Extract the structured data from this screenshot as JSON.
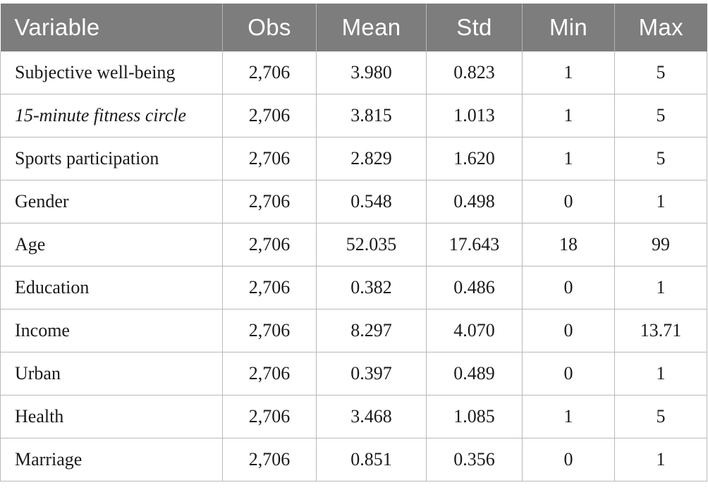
{
  "table": {
    "headers": [
      "Variable",
      "Obs",
      "Mean",
      "Std",
      "Min",
      "Max"
    ],
    "rows": [
      {
        "variable": "Subjective well-being",
        "italic": false,
        "obs": "2,706",
        "mean": "3.980",
        "std": "0.823",
        "min": "1",
        "max": "5"
      },
      {
        "variable": "15-minute fitness circle",
        "italic": true,
        "obs": "2,706",
        "mean": "3.815",
        "std": "1.013",
        "min": "1",
        "max": "5"
      },
      {
        "variable": "Sports participation",
        "italic": false,
        "obs": "2,706",
        "mean": "2.829",
        "std": "1.620",
        "min": "1",
        "max": "5"
      },
      {
        "variable": "Gender",
        "italic": false,
        "obs": "2,706",
        "mean": "0.548",
        "std": "0.498",
        "min": "0",
        "max": "1"
      },
      {
        "variable": "Age",
        "italic": false,
        "obs": "2,706",
        "mean": "52.035",
        "std": "17.643",
        "min": "18",
        "max": "99"
      },
      {
        "variable": "Education",
        "italic": false,
        "obs": "2,706",
        "mean": "0.382",
        "std": "0.486",
        "min": "0",
        "max": "1"
      },
      {
        "variable": "Income",
        "italic": false,
        "obs": "2,706",
        "mean": "8.297",
        "std": "4.070",
        "min": "0",
        "max": "13.71"
      },
      {
        "variable": "Urban",
        "italic": false,
        "obs": "2,706",
        "mean": "0.397",
        "std": "0.489",
        "min": "0",
        "max": "1"
      },
      {
        "variable": "Health",
        "italic": false,
        "obs": "2,706",
        "mean": "3.468",
        "std": "1.085",
        "min": "1",
        "max": "5"
      },
      {
        "variable": "Marriage",
        "italic": false,
        "obs": "2,706",
        "mean": "0.851",
        "std": "0.356",
        "min": "0",
        "max": "1"
      }
    ]
  },
  "colors": {
    "header_background": "#7d7d7d",
    "header_text": "#ffffff",
    "grid_line": "#b9b9b9"
  }
}
